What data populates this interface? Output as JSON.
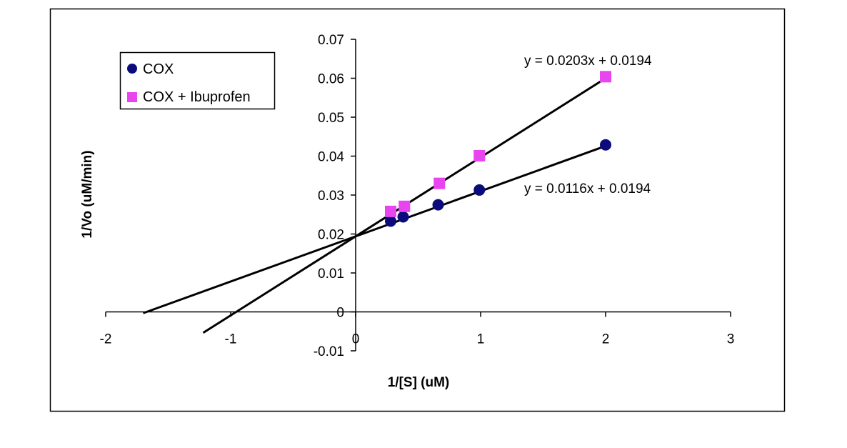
{
  "chart_data": {
    "type": "scatter",
    "title": "",
    "xlabel": "1/[S] (uM)",
    "ylabel": "1/Vo (uM/min)",
    "xlim": [
      -2,
      3
    ],
    "ylim": [
      -0.01,
      0.07
    ],
    "x_ticks": [
      "-2",
      "-1",
      "0",
      "1",
      "2",
      "3"
    ],
    "y_ticks": [
      "-0.01",
      "0",
      "0.01",
      "0.02",
      "0.03",
      "0.04",
      "0.05",
      "0.06",
      "0.07"
    ],
    "legend_position": "top-left",
    "series": [
      {
        "name": "COX",
        "marker": "circle",
        "color": "#0b0b7c",
        "x": [
          0.28,
          0.38,
          0.66,
          0.99,
          2.0
        ],
        "y": [
          0.0233,
          0.0244,
          0.0275,
          0.0313,
          0.0429
        ],
        "trendline": {
          "slope": 0.0116,
          "intercept": 0.0194,
          "x_range": [
            -1.7,
            2.0
          ],
          "equation": "y = 0.0116x + 0.0194"
        }
      },
      {
        "name": "COX + Ibuprofen",
        "marker": "square",
        "color": "#e845f0",
        "x": [
          0.28,
          0.39,
          0.67,
          0.99,
          2.0
        ],
        "y": [
          0.0258,
          0.0271,
          0.033,
          0.0401,
          0.0604
        ],
        "trendline": {
          "slope": 0.0203,
          "intercept": 0.0194,
          "x_range": [
            -1.22,
            2.0
          ],
          "equation": "y = 0.0203x + 0.0194"
        }
      }
    ]
  }
}
